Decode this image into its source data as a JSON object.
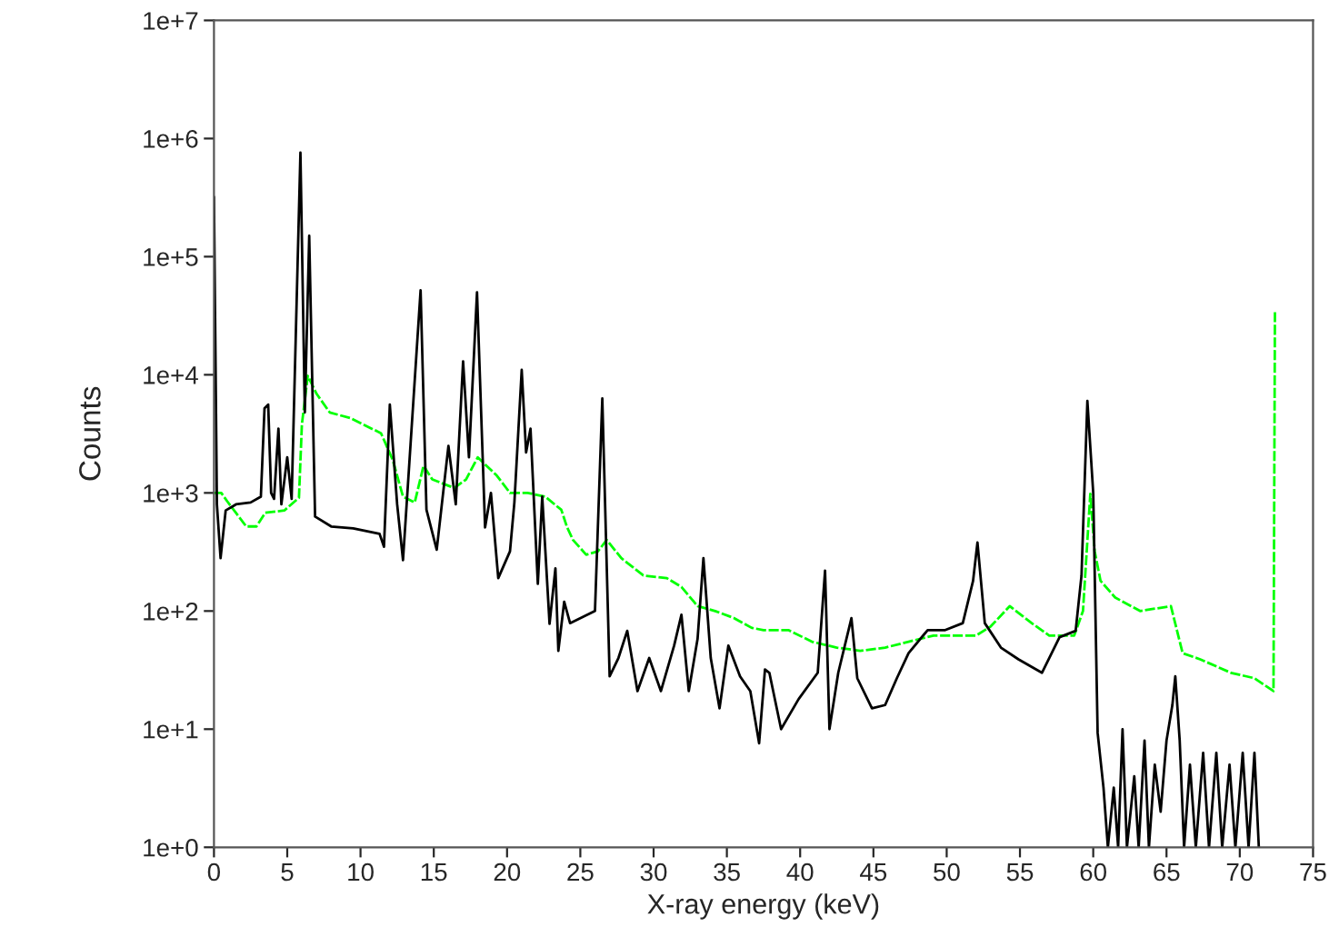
{
  "chart_data": {
    "type": "line",
    "xlabel": "X-ray energy (keV)",
    "ylabel": "Counts",
    "log": "y",
    "xlim": [
      0,
      75
    ],
    "xticks": [
      0,
      5,
      10,
      15,
      20,
      25,
      30,
      35,
      40,
      45,
      50,
      55,
      60,
      65,
      70,
      75
    ],
    "ylim": [
      1,
      10000000
    ],
    "yticks": [
      {
        "value": 1,
        "label": "1e+0"
      },
      {
        "value": 10,
        "label": "1e+1"
      },
      {
        "value": 100,
        "label": "1e+2"
      },
      {
        "value": 1000,
        "label": "1e+3"
      },
      {
        "value": 10000,
        "label": "1e+4"
      },
      {
        "value": 100000,
        "label": "1e+5"
      },
      {
        "value": 1000000,
        "label": "1e+6"
      },
      {
        "value": 10000000,
        "label": "1e+7"
      }
    ],
    "grid": false,
    "legend": false,
    "marker": "none",
    "series": [
      {
        "color": "#00ff00",
        "line_style": "dashed",
        "x": [
          0.0,
          0.5,
          0.9,
          2.2,
          2.9,
          3.5,
          4.8,
          5.8,
          6.0,
          6.4,
          7.0,
          7.9,
          9.3,
          11.4,
          12.2,
          12.9,
          13.7,
          14.3,
          14.9,
          16.4,
          17.2,
          18.0,
          19.3,
          20.2,
          21.4,
          22.6,
          23.7,
          24.1,
          24.5,
          25.4,
          26.2,
          26.8,
          27.8,
          29.3,
          30.9,
          31.9,
          33.0,
          34.2,
          35.5,
          36.7,
          37.5,
          39.2,
          40.8,
          42.5,
          44.1,
          45.8,
          47.4,
          49.1,
          50.7,
          52.0,
          53.0,
          54.3,
          55.8,
          57.0,
          58.7,
          59.3,
          59.8,
          60.1,
          60.5,
          61.5,
          63.2,
          65.3,
          66.1,
          67.3,
          69.4,
          71.0,
          72.3,
          72.4
        ],
        "values": [
          1000,
          1000,
          850,
          520,
          520,
          680,
          710,
          910,
          3800,
          9800,
          6900,
          4800,
          4300,
          3200,
          1900,
          930,
          830,
          1700,
          1300,
          1100,
          1300,
          2000,
          1400,
          1000,
          1000,
          930,
          720,
          510,
          400,
          300,
          320,
          400,
          280,
          200,
          190,
          160,
          110,
          100,
          87,
          72,
          69,
          69,
          55,
          49,
          46,
          49,
          55,
          62,
          62,
          62,
          74,
          110,
          79,
          62,
          62,
          100,
          980,
          320,
          180,
          130,
          100,
          110,
          44,
          39,
          30,
          27,
          21,
          35000
        ]
      },
      {
        "color": "#000000",
        "line_style": "solid",
        "x": [
          0.0,
          0.2,
          0.45,
          0.8,
          1.5,
          2.5,
          3.2,
          3.45,
          3.7,
          3.9,
          4.1,
          4.4,
          4.6,
          5.0,
          5.3,
          5.9,
          6.2,
          6.5,
          6.9,
          8.0,
          9.5,
          11.3,
          11.6,
          12.0,
          12.5,
          12.9,
          14.1,
          14.5,
          15.2,
          16.0,
          16.5,
          17.0,
          17.4,
          17.95,
          18.5,
          18.9,
          19.4,
          20.2,
          20.5,
          21.0,
          21.3,
          21.6,
          22.1,
          22.4,
          22.9,
          23.3,
          23.5,
          23.9,
          24.3,
          26.0,
          26.5,
          27.0,
          27.6,
          28.2,
          28.9,
          29.7,
          30.5,
          31.4,
          31.9,
          32.4,
          33.0,
          33.4,
          33.9,
          34.5,
          35.1,
          35.9,
          36.6,
          37.2,
          37.6,
          37.9,
          38.7,
          39.9,
          41.2,
          41.7,
          42.0,
          42.6,
          43.5,
          43.9,
          44.9,
          45.8,
          46.6,
          47.4,
          48.7,
          49.9,
          51.1,
          51.8,
          52.1,
          52.6,
          53.7,
          54.9,
          56.5,
          57.7,
          58.8,
          59.2,
          59.6,
          60.0,
          60.3,
          60.7,
          61.0,
          61.4,
          61.7,
          62.0,
          62.3,
          62.8,
          63.1,
          63.5,
          63.8,
          64.2,
          64.6,
          65.0,
          65.4,
          65.6,
          65.9,
          66.2,
          66.6,
          67.0,
          67.5,
          67.9,
          68.4,
          68.8,
          69.3,
          69.7,
          70.2,
          70.6,
          71.0,
          71.3
        ],
        "values": [
          320000,
          800,
          280,
          710,
          800,
          830,
          930,
          5200,
          5600,
          1000,
          890,
          3500,
          800,
          2000,
          890,
          760000,
          4800,
          150000,
          630,
          520,
          500,
          450,
          350,
          5600,
          800,
          270,
          52000,
          720,
          330,
          2500,
          800,
          13000,
          2000,
          50000,
          510,
          1000,
          190,
          320,
          830,
          11000,
          2200,
          3500,
          170,
          930,
          78,
          230,
          46,
          120,
          79,
          100,
          6300,
          28,
          40,
          68,
          21,
          40,
          21,
          51,
          93,
          21,
          58,
          280,
          40,
          15,
          51,
          28,
          21,
          7.6,
          32,
          30,
          10,
          18,
          30,
          220,
          10,
          30,
          87,
          27,
          15,
          16,
          27,
          44,
          69,
          69,
          79,
          180,
          380,
          79,
          49,
          39,
          30,
          60,
          68,
          200,
          6000,
          1000,
          9.3,
          3.2,
          1,
          3.2,
          1,
          10,
          1,
          4,
          1,
          8,
          1,
          5,
          2,
          8,
          16,
          28,
          8,
          1,
          5,
          1,
          6.3,
          1,
          6.3,
          1,
          5,
          1,
          6.3,
          1,
          6.3,
          1
        ]
      }
    ]
  }
}
